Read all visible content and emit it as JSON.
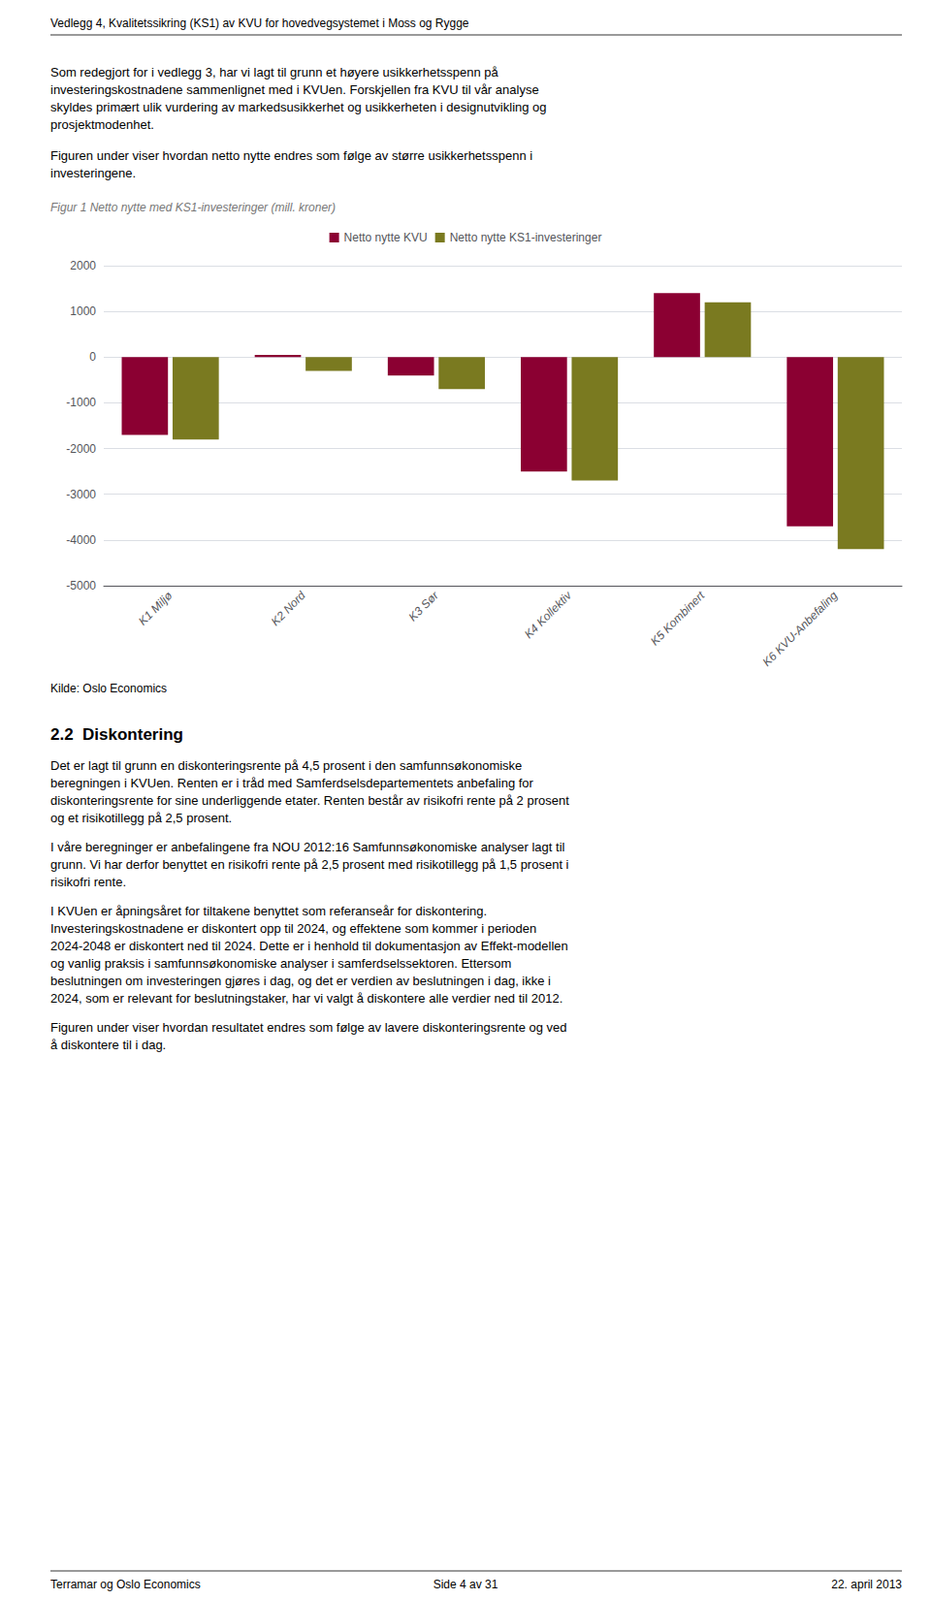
{
  "chart_data": {
    "type": "bar",
    "title": "Figur 1 Netto nytte med KS1-investeringer (mill. kroner)",
    "categories": [
      "K1 Miljø",
      "K2 Nord",
      "K3 Sør",
      "K4 Kollektiv",
      "K5 Kombinert",
      "K6 KVU-Anbefaling"
    ],
    "series": [
      {
        "name": "Netto nytte KVU",
        "color": "#8B0032",
        "values": [
          -1700,
          50,
          -400,
          -2500,
          1400,
          -3700
        ]
      },
      {
        "name": "Netto nytte KS1-investeringer",
        "color": "#7a7a20",
        "values": [
          -1800,
          -300,
          -700,
          -2700,
          1200,
          -4200
        ]
      }
    ],
    "ylim": [
      -5000,
      2000
    ],
    "yticks": [
      -5000,
      -4000,
      -3000,
      -2000,
      -1000,
      0,
      1000,
      2000
    ],
    "grid": true,
    "legend": "top",
    "header": "Vedlegg 4, Kvalitetssikring (KS1) av KVU for hovedvegsystemet i Moss og Rygge",
    "paragraphs_before": [
      [
        "Som redegjort for i vedlegg 3, har vi lagt til grunn et høyere usikkerhetsspenn på",
        "investeringskostnadene sammenlignet med i KVUen. Forskjellen fra KVU til vår analyse",
        "skyldes primært ulik vurdering av markedsusikkerhet og usikkerheten i designutvikling og",
        "prosjektmodenhet."
      ],
      [
        "Figuren under viser hvordan netto nytte endres som følge av større usikkerhetsspenn i",
        "investeringene."
      ]
    ],
    "source": "Kilde: Oslo Economics",
    "section_title": "2.2  Diskontering",
    "paragraphs_after": [
      [
        "Det er lagt til grunn en diskonteringsrente på 4,5 prosent i den samfunnsøkonomiske",
        "beregningen i KVUen. Renten er i tråd med Samferdselsdepartementets anbefaling for",
        "diskonteringsrente for sine underliggende etater. Renten består av risikofri rente på 2 prosent",
        "og et risikotillegg på 2,5 prosent."
      ],
      [
        "I våre beregninger er anbefalingene fra NOU 2012:16 Samfunnsøkonomiske analyser lagt til",
        "grunn. Vi har derfor benyttet en risikofri rente på 2,5 prosent med risikotillegg på 1,5 prosent i",
        "risikofri rente."
      ],
      [
        "I KVUen er åpningsåret for tiltakene benyttet som referanseår for diskontering.",
        "Investeringskostnadene er diskontert opp til 2024, og effektene som kommer i perioden",
        "2024-2048 er diskontert ned til 2024. Dette er i henhold til dokumentasjon av Effekt-modellen",
        "og vanlig praksis i samfunnsøkonomiske analyser i samferdselssektoren. Ettersom",
        "beslutningen om investeringen gjøres i dag, og det er verdien av beslutningen i dag, ikke i",
        "2024, som er relevant for beslutningstaker, har vi valgt å diskontere alle verdier ned til 2012."
      ],
      [
        "Figuren under viser hvordan resultatet endres som følge av lavere diskonteringsrente og ved",
        "å diskontere til i dag."
      ]
    ],
    "footer": [
      "Terramar og Oslo Economics",
      "Side 4 av 31",
      "22. april 2013"
    ]
  }
}
